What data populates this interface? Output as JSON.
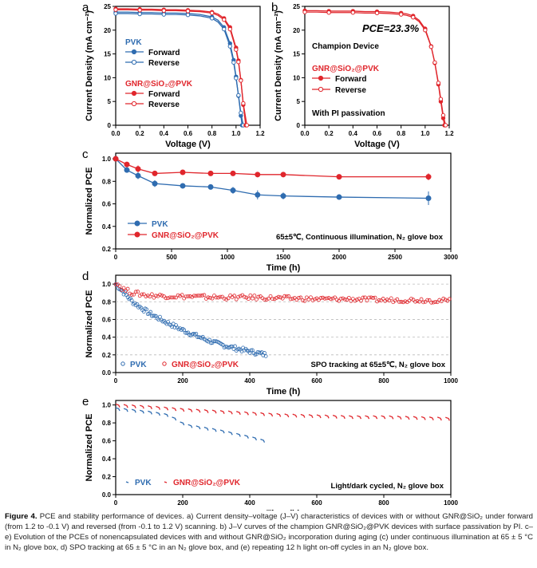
{
  "caption": {
    "label": "Figure 4.",
    "text": "PCE and stability performance of devices. a) Current density–voltage (J–V) characteristics of devices with or without GNR@SiO₂ under forward (from 1.2 to -0.1 V) and reversed (from -0.1 to 1.2 V) scanning. b) J–V curves of the champion GNR@SiO₂@PVK devices with surface passivation by PI. c–e) Evolution of the PCEs of nonencapsulated devices with and without GNR@SiO₂ incorporation during aging (c) under continuous illumination at 65 ± 5 °C in N₂ glove box, d) SPO tracking at 65 ± 5 °C in an N₂ glove box, and (e) repeating 12 h light on-off cycles in an N₂ glove box."
  },
  "colors": {
    "pvk": "#2f6cb0",
    "gnr": "#e0262c"
  },
  "chart_data": [
    {
      "panel": "a",
      "type": "line",
      "xlabel": "Voltage (V)",
      "ylabel": "Current Density (mA cm⁻²)",
      "xlim": [
        0,
        1.2
      ],
      "ylim": [
        0,
        25
      ],
      "xticks": [
        "0.0",
        "0.2",
        "0.4",
        "0.6",
        "0.8",
        "1.0",
        "1.2"
      ],
      "yticks": [
        "0",
        "5",
        "10",
        "15",
        "20",
        "25"
      ],
      "legend_groups": [
        "PVK",
        "GNR@SiO₂@PVK"
      ],
      "series": [
        {
          "name": "PVK Forward",
          "group": "pvk",
          "marker": "filled",
          "x": [
            0,
            0.1,
            0.2,
            0.3,
            0.4,
            0.5,
            0.6,
            0.7,
            0.8,
            0.85,
            0.9,
            0.95,
            0.98,
            1.0,
            1.02,
            1.04,
            1.05
          ],
          "y": [
            23.8,
            23.8,
            23.7,
            23.7,
            23.6,
            23.6,
            23.5,
            23.3,
            22.8,
            22.1,
            20.6,
            17.2,
            13.7,
            10.2,
            6.2,
            2.0,
            0
          ]
        },
        {
          "name": "PVK Reverse",
          "group": "pvk",
          "marker": "open",
          "x": [
            0,
            0.1,
            0.2,
            0.3,
            0.4,
            0.5,
            0.6,
            0.7,
            0.8,
            0.85,
            0.9,
            0.95,
            0.98,
            1.0,
            1.02,
            1.04,
            1.06
          ],
          "y": [
            23.5,
            23.5,
            23.4,
            23.4,
            23.3,
            23.3,
            23.2,
            23.0,
            22.5,
            21.7,
            20.2,
            16.6,
            13.2,
            9.9,
            6.3,
            2.6,
            0
          ]
        },
        {
          "name": "GNR@SiO₂@PVK Forward",
          "group": "gnr",
          "marker": "filled",
          "x": [
            0,
            0.1,
            0.2,
            0.3,
            0.4,
            0.5,
            0.6,
            0.7,
            0.8,
            0.85,
            0.9,
            0.95,
            1.0,
            1.02,
            1.04,
            1.06,
            1.08
          ],
          "y": [
            24.5,
            24.5,
            24.4,
            24.4,
            24.3,
            24.3,
            24.2,
            24.1,
            23.8,
            23.4,
            22.5,
            20.6,
            16.3,
            13.6,
            9.5,
            4.3,
            0
          ]
        },
        {
          "name": "GNR@SiO₂@PVK Reverse",
          "group": "gnr",
          "marker": "open",
          "x": [
            0,
            0.1,
            0.2,
            0.3,
            0.4,
            0.5,
            0.6,
            0.7,
            0.8,
            0.85,
            0.9,
            0.95,
            1.0,
            1.02,
            1.04,
            1.06,
            1.09
          ],
          "y": [
            24.3,
            24.3,
            24.2,
            24.2,
            24.1,
            24.1,
            24.0,
            23.9,
            23.6,
            23.1,
            22.2,
            20.2,
            15.9,
            13.3,
            9.4,
            4.6,
            0
          ]
        }
      ],
      "legend": {
        "pvk_title": "PVK",
        "gnr_title": "GNR@SiO₂@PVK",
        "forward": "Forward",
        "reverse": "Reverse"
      }
    },
    {
      "panel": "b",
      "type": "line",
      "xlabel": "Voltage (V)",
      "ylabel": "Current Density (mA cm⁻²)",
      "xlim": [
        0,
        1.2
      ],
      "ylim": [
        0,
        25
      ],
      "xticks": [
        "0.0",
        "0.2",
        "0.4",
        "0.6",
        "0.8",
        "1.0",
        "1.2"
      ],
      "yticks": [
        "0",
        "5",
        "10",
        "15",
        "20",
        "25"
      ],
      "annotations": {
        "pce": "PCE=23.3%",
        "device": "Champion Device",
        "group": "GNR@SiO₂@PVK",
        "forward": "Forward",
        "reverse": "Reverse",
        "note": "With PI passivation"
      },
      "series": [
        {
          "name": "Forward",
          "marker": "filled",
          "x": [
            0,
            0.1,
            0.2,
            0.3,
            0.4,
            0.5,
            0.6,
            0.7,
            0.8,
            0.85,
            0.9,
            0.95,
            1.0,
            1.05,
            1.08,
            1.11,
            1.13,
            1.15,
            1.16
          ],
          "y": [
            24.1,
            24.1,
            24.0,
            24.0,
            24.0,
            23.9,
            23.9,
            23.8,
            23.6,
            23.4,
            23.0,
            22.1,
            20.3,
            16.6,
            13.1,
            8.6,
            5.0,
            1.5,
            0
          ]
        },
        {
          "name": "Reverse",
          "marker": "open",
          "x": [
            0,
            0.1,
            0.2,
            0.3,
            0.4,
            0.5,
            0.6,
            0.7,
            0.8,
            0.85,
            0.9,
            0.95,
            1.0,
            1.05,
            1.08,
            1.11,
            1.13,
            1.15,
            1.17
          ],
          "y": [
            23.8,
            23.8,
            23.7,
            23.7,
            23.7,
            23.6,
            23.6,
            23.5,
            23.3,
            23.1,
            22.7,
            21.8,
            20.0,
            16.5,
            13.2,
            8.9,
            5.5,
            2.1,
            0
          ]
        }
      ]
    },
    {
      "panel": "c",
      "type": "line",
      "xlabel": "Time (h)",
      "ylabel": "Normalized PCE",
      "xlim": [
        0,
        3000
      ],
      "ylim": [
        0.2,
        1.05
      ],
      "xticks": [
        "0",
        "500",
        "1000",
        "1500",
        "2000",
        "2500",
        "3000"
      ],
      "yticks": [
        "0.2",
        "0.4",
        "0.6",
        "0.8",
        "1.0"
      ],
      "annotation": "65±5℃, Continuous illumination, N₂ glove box",
      "legend": [
        "PVK",
        "GNR@SiO₂@PVK"
      ],
      "series": [
        {
          "name": "PVK",
          "x": [
            0,
            100,
            200,
            350,
            600,
            850,
            1050,
            1270,
            1500,
            2000,
            2800
          ],
          "y": [
            1.0,
            0.9,
            0.85,
            0.78,
            0.76,
            0.75,
            0.72,
            0.68,
            0.67,
            0.66,
            0.65
          ],
          "err": [
            0,
            0.02,
            0.03,
            0.03,
            0.02,
            0.02,
            0.03,
            0.04,
            0.03,
            0.02,
            0.06
          ]
        },
        {
          "name": "GNR@SiO₂@PVK",
          "x": [
            0,
            100,
            200,
            350,
            600,
            850,
            1050,
            1270,
            1500,
            2000,
            2800
          ],
          "y": [
            1.0,
            0.95,
            0.91,
            0.87,
            0.88,
            0.87,
            0.87,
            0.86,
            0.86,
            0.84,
            0.84
          ],
          "err": [
            0,
            0.02,
            0.03,
            0.02,
            0.02,
            0.02,
            0.02,
            0.02,
            0.02,
            0.02,
            0.03
          ]
        }
      ]
    },
    {
      "panel": "d",
      "type": "scatter",
      "xlabel": "Time (h)",
      "ylabel": "Normalized PCE",
      "xlim": [
        0,
        1000
      ],
      "ylim": [
        0,
        1.1
      ],
      "xticks": [
        "0",
        "200",
        "400",
        "600",
        "800",
        "1000"
      ],
      "yticks": [
        "0.0",
        "0.2",
        "0.4",
        "0.6",
        "0.8",
        "1.0"
      ],
      "annotation": "SPO tracking at 65±5℃, N₂ glove box",
      "legend": [
        "PVK",
        "GNR@SiO₂@PVK"
      ],
      "series": [
        {
          "name": "PVK",
          "x": [
            0,
            20,
            50,
            100,
            150,
            200,
            250,
            300,
            350,
            400,
            450
          ],
          "y": [
            1.0,
            0.92,
            0.8,
            0.67,
            0.57,
            0.48,
            0.4,
            0.33,
            0.28,
            0.24,
            0.2
          ]
        },
        {
          "name": "GNR@SiO₂@PVK",
          "x": [
            0,
            20,
            50,
            100,
            200,
            300,
            400,
            500,
            600,
            700,
            800,
            900,
            1000
          ],
          "y": [
            1.02,
            0.95,
            0.9,
            0.87,
            0.86,
            0.85,
            0.85,
            0.84,
            0.83,
            0.83,
            0.82,
            0.82,
            0.81
          ]
        }
      ]
    },
    {
      "panel": "e",
      "type": "scatter",
      "xlabel": "Time (h)",
      "ylabel": "Normalized PCE",
      "xlim": [
        0,
        1000
      ],
      "ylim": [
        0,
        1.05
      ],
      "xticks": [
        "0",
        "200",
        "400",
        "600",
        "800",
        "1000"
      ],
      "yticks": [
        "0.0",
        "0.2",
        "0.4",
        "0.6",
        "0.8",
        "1.0"
      ],
      "annotation": "Light/dark cycled, N₂ glove box",
      "legend": [
        "PVK",
        "GNR@SiO₂@PVK"
      ],
      "series": [
        {
          "name": "PVK",
          "x": [
            0,
            50,
            100,
            150,
            180,
            200,
            250,
            300,
            350,
            400,
            450
          ],
          "y": [
            0.97,
            0.95,
            0.93,
            0.9,
            0.84,
            0.79,
            0.76,
            0.73,
            0.69,
            0.65,
            0.6
          ]
        },
        {
          "name": "GNR@SiO₂@PVK",
          "x": [
            0,
            100,
            200,
            300,
            400,
            500,
            600,
            700,
            800,
            900,
            1000
          ],
          "y": [
            1.01,
            0.99,
            0.96,
            0.94,
            0.92,
            0.9,
            0.89,
            0.88,
            0.88,
            0.87,
            0.86
          ]
        }
      ]
    }
  ]
}
